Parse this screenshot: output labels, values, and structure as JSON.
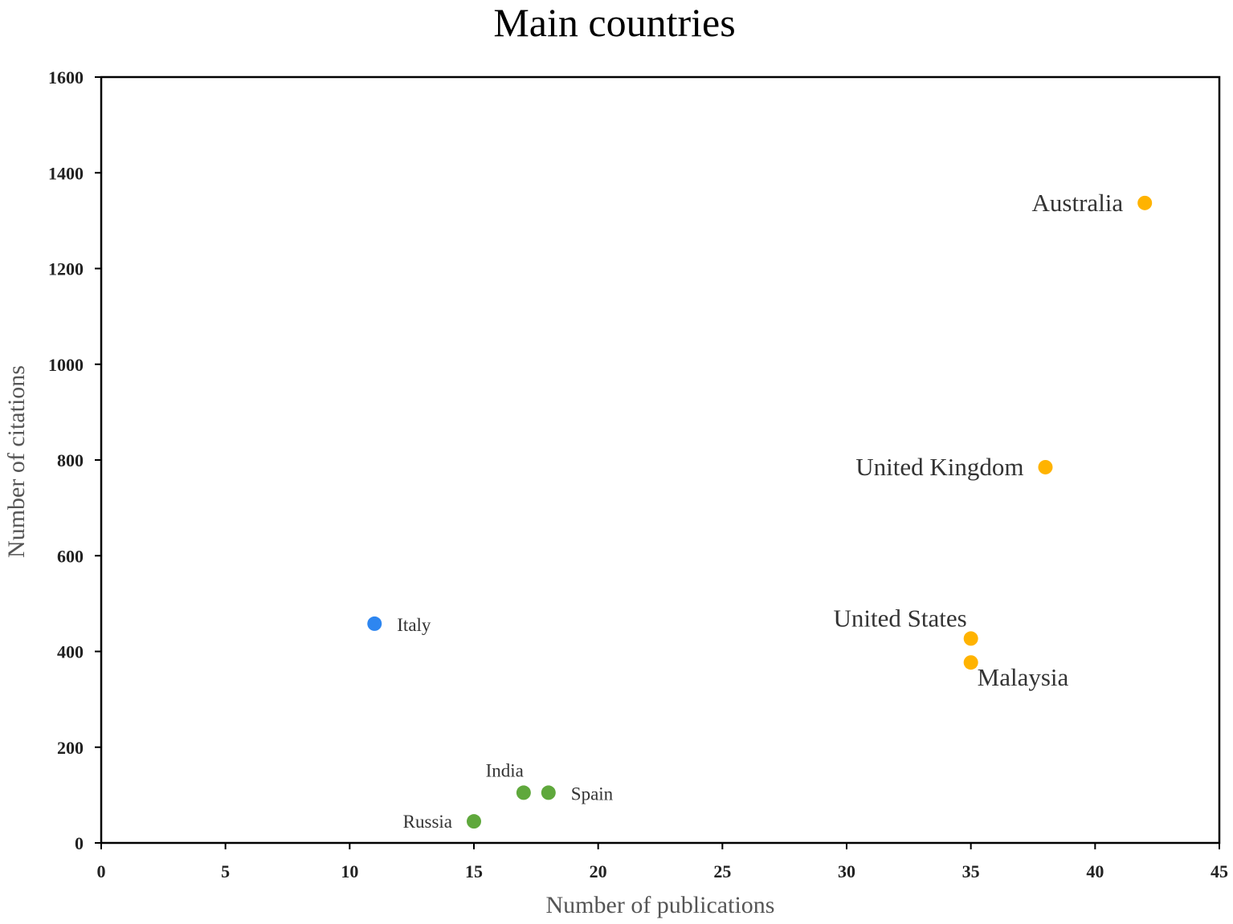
{
  "chart_data": {
    "type": "scatter",
    "title": "Main countries",
    "xlabel": "Number of publications",
    "ylabel": "Number of citations",
    "xlim": [
      0,
      45
    ],
    "ylim": [
      0,
      1600
    ],
    "x_ticks": [
      0,
      5,
      10,
      15,
      20,
      25,
      30,
      35,
      40,
      45
    ],
    "y_ticks": [
      0,
      200,
      400,
      600,
      800,
      1000,
      1200,
      1400,
      1600
    ],
    "grid": false,
    "legend": "none",
    "points": [
      {
        "label": "Australia",
        "x": 42,
        "y": 1337,
        "color": "#FFB300",
        "label_side": "left",
        "label_size": "large"
      },
      {
        "label": "United Kingdom",
        "x": 38,
        "y": 785,
        "color": "#FFB300",
        "label_side": "left",
        "label_size": "large"
      },
      {
        "label": "United States",
        "x": 35,
        "y": 427,
        "color": "#FFB300",
        "label_side": "top-left",
        "label_size": "large"
      },
      {
        "label": "Malaysia",
        "x": 35,
        "y": 377,
        "color": "#FFB300",
        "label_side": "bottom-right",
        "label_size": "large"
      },
      {
        "label": "Italy",
        "x": 11,
        "y": 458,
        "color": "#2E86F0",
        "label_side": "right",
        "label_size": "small"
      },
      {
        "label": "India",
        "x": 17,
        "y": 105,
        "color": "#5FA83C",
        "label_side": "top-left",
        "label_size": "small"
      },
      {
        "label": "Spain",
        "x": 18,
        "y": 105,
        "color": "#5FA83C",
        "label_side": "right",
        "label_size": "small"
      },
      {
        "label": "Russia",
        "x": 15,
        "y": 45,
        "color": "#5FA83C",
        "label_side": "left",
        "label_size": "small"
      }
    ]
  }
}
